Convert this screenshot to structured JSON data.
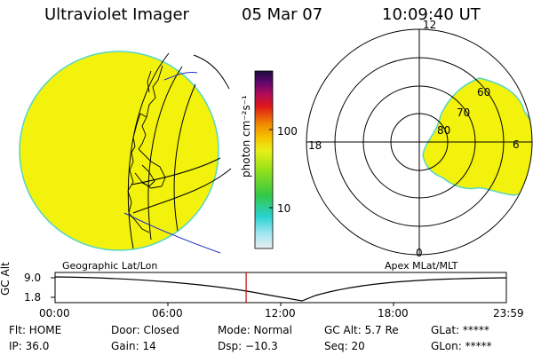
{
  "header": {
    "instrument": "Ultraviolet Imager",
    "date": "05 Mar 07",
    "time": "10:09:40 UT"
  },
  "colorbar": {
    "unit_label": "photon cm⁻²s⁻¹",
    "ticks": [
      "100",
      "10"
    ]
  },
  "polar_plot": {
    "mlt_labels": [
      "12",
      "18",
      "6",
      "0"
    ],
    "lat_labels": [
      "60",
      "70",
      "80"
    ]
  },
  "globe_caption": "Geographic Lat/Lon",
  "polar_caption": "Apex MLat/MLT",
  "timeline": {
    "axis_label": "GC Alt",
    "y_ticks": [
      "9.0",
      "1.8"
    ],
    "x_ticks": [
      "00:00",
      "06:00",
      "12:00",
      "18:00",
      "23:59"
    ],
    "current_time_fraction": 0.4234
  },
  "status": {
    "row1": [
      {
        "label": "Flt: HOME"
      },
      {
        "label": "Door: Closed"
      },
      {
        "label": "Mode: Normal"
      },
      {
        "label": "GC Alt: 5.7 Re"
      },
      {
        "label": "GLat: *****"
      }
    ],
    "row2": [
      {
        "label": "IP: 36.0"
      },
      {
        "label": "Gain: 14"
      },
      {
        "label": "Dsp:  −10.3"
      },
      {
        "label": "Seq: 20"
      },
      {
        "label": "GLon: *****"
      }
    ]
  },
  "colors": {
    "emission": "#f2f20d",
    "edge": "#55d6c7",
    "marker": "#cc0000"
  }
}
